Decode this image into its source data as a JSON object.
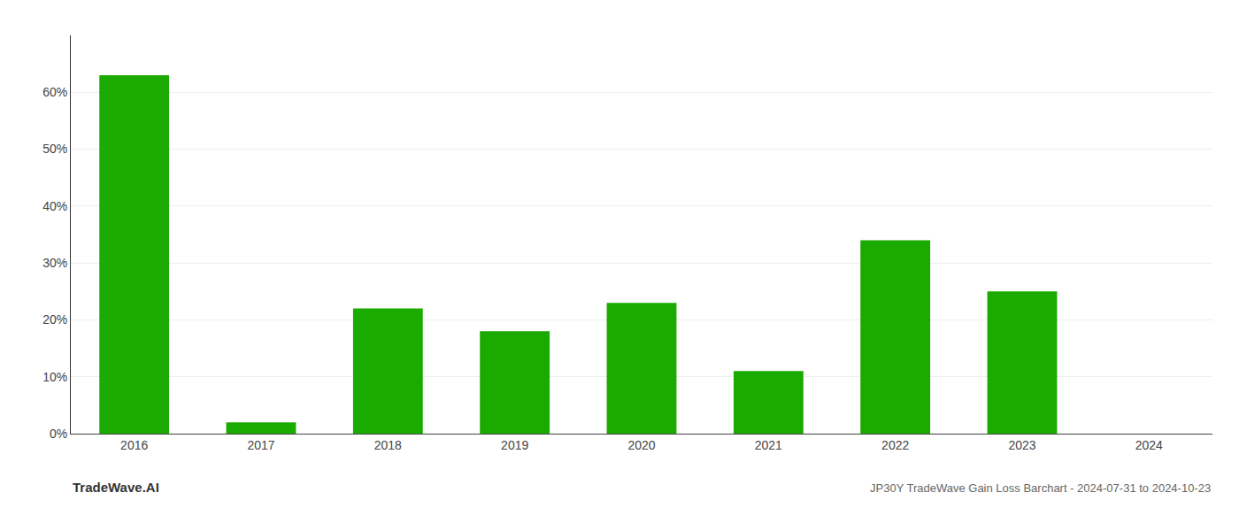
{
  "chart_data": {
    "type": "bar",
    "categories": [
      "2016",
      "2017",
      "2018",
      "2019",
      "2020",
      "2021",
      "2022",
      "2023",
      "2024"
    ],
    "values": [
      0.63,
      0.02,
      0.22,
      0.18,
      0.23,
      0.11,
      0.34,
      0.25,
      0.0
    ],
    "color": "#1aaa00",
    "ylim": [
      0,
      0.7
    ],
    "yticks": [
      {
        "value": 0.0,
        "label": "0%"
      },
      {
        "value": 0.1,
        "label": "10%"
      },
      {
        "value": 0.2,
        "label": "20%"
      },
      {
        "value": 0.3,
        "label": "30%"
      },
      {
        "value": 0.4,
        "label": "40%"
      },
      {
        "value": 0.5,
        "label": "50%"
      },
      {
        "value": 0.6,
        "label": "60%"
      }
    ],
    "grid": true,
    "annotations": [
      "TradeWave.AI",
      "JP30Y TradeWave Gain Loss Barchart - 2024-07-31 to 2024-10-23"
    ]
  }
}
